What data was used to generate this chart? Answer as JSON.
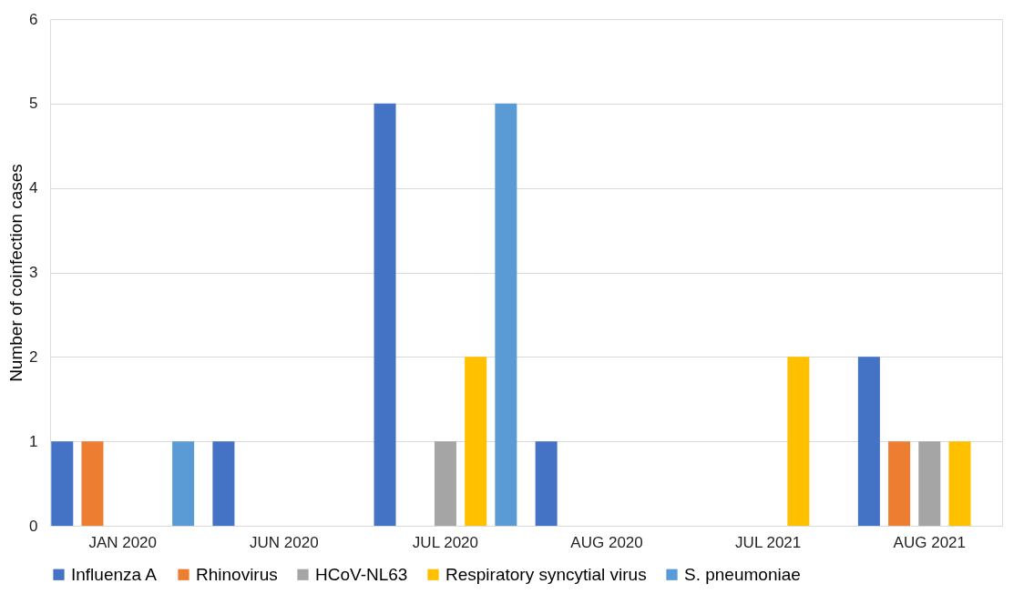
{
  "chart_data": {
    "type": "bar",
    "ylabel": "Number of coinfection cases",
    "categories": [
      "JAN 2020",
      "JUN 2020",
      "JUL 2020",
      "AUG 2020",
      "JUL 2021",
      "AUG 2021"
    ],
    "series": [
      {
        "name": "Influenza A",
        "color": "#4472c4",
        "values": [
          1,
          1,
          5,
          1,
          null,
          2
        ]
      },
      {
        "name": "Rhinovirus",
        "color": "#ed7d31",
        "values": [
          1,
          null,
          null,
          null,
          null,
          1
        ]
      },
      {
        "name": "HCoV-NL63",
        "color": "#a5a5a5",
        "values": [
          null,
          null,
          1,
          null,
          null,
          1
        ]
      },
      {
        "name": "Respiratory syncytial virus",
        "color": "#ffc000",
        "values": [
          null,
          null,
          2,
          null,
          2,
          1
        ]
      },
      {
        "name": "S. pneumoniae",
        "color": "#5b9bd5",
        "values": [
          1,
          null,
          5,
          null,
          null,
          null
        ]
      }
    ],
    "ylim": [
      0,
      6
    ],
    "yticks": [
      0,
      1,
      2,
      3,
      4,
      5,
      6
    ],
    "grid": "y",
    "legend": "bottom"
  }
}
